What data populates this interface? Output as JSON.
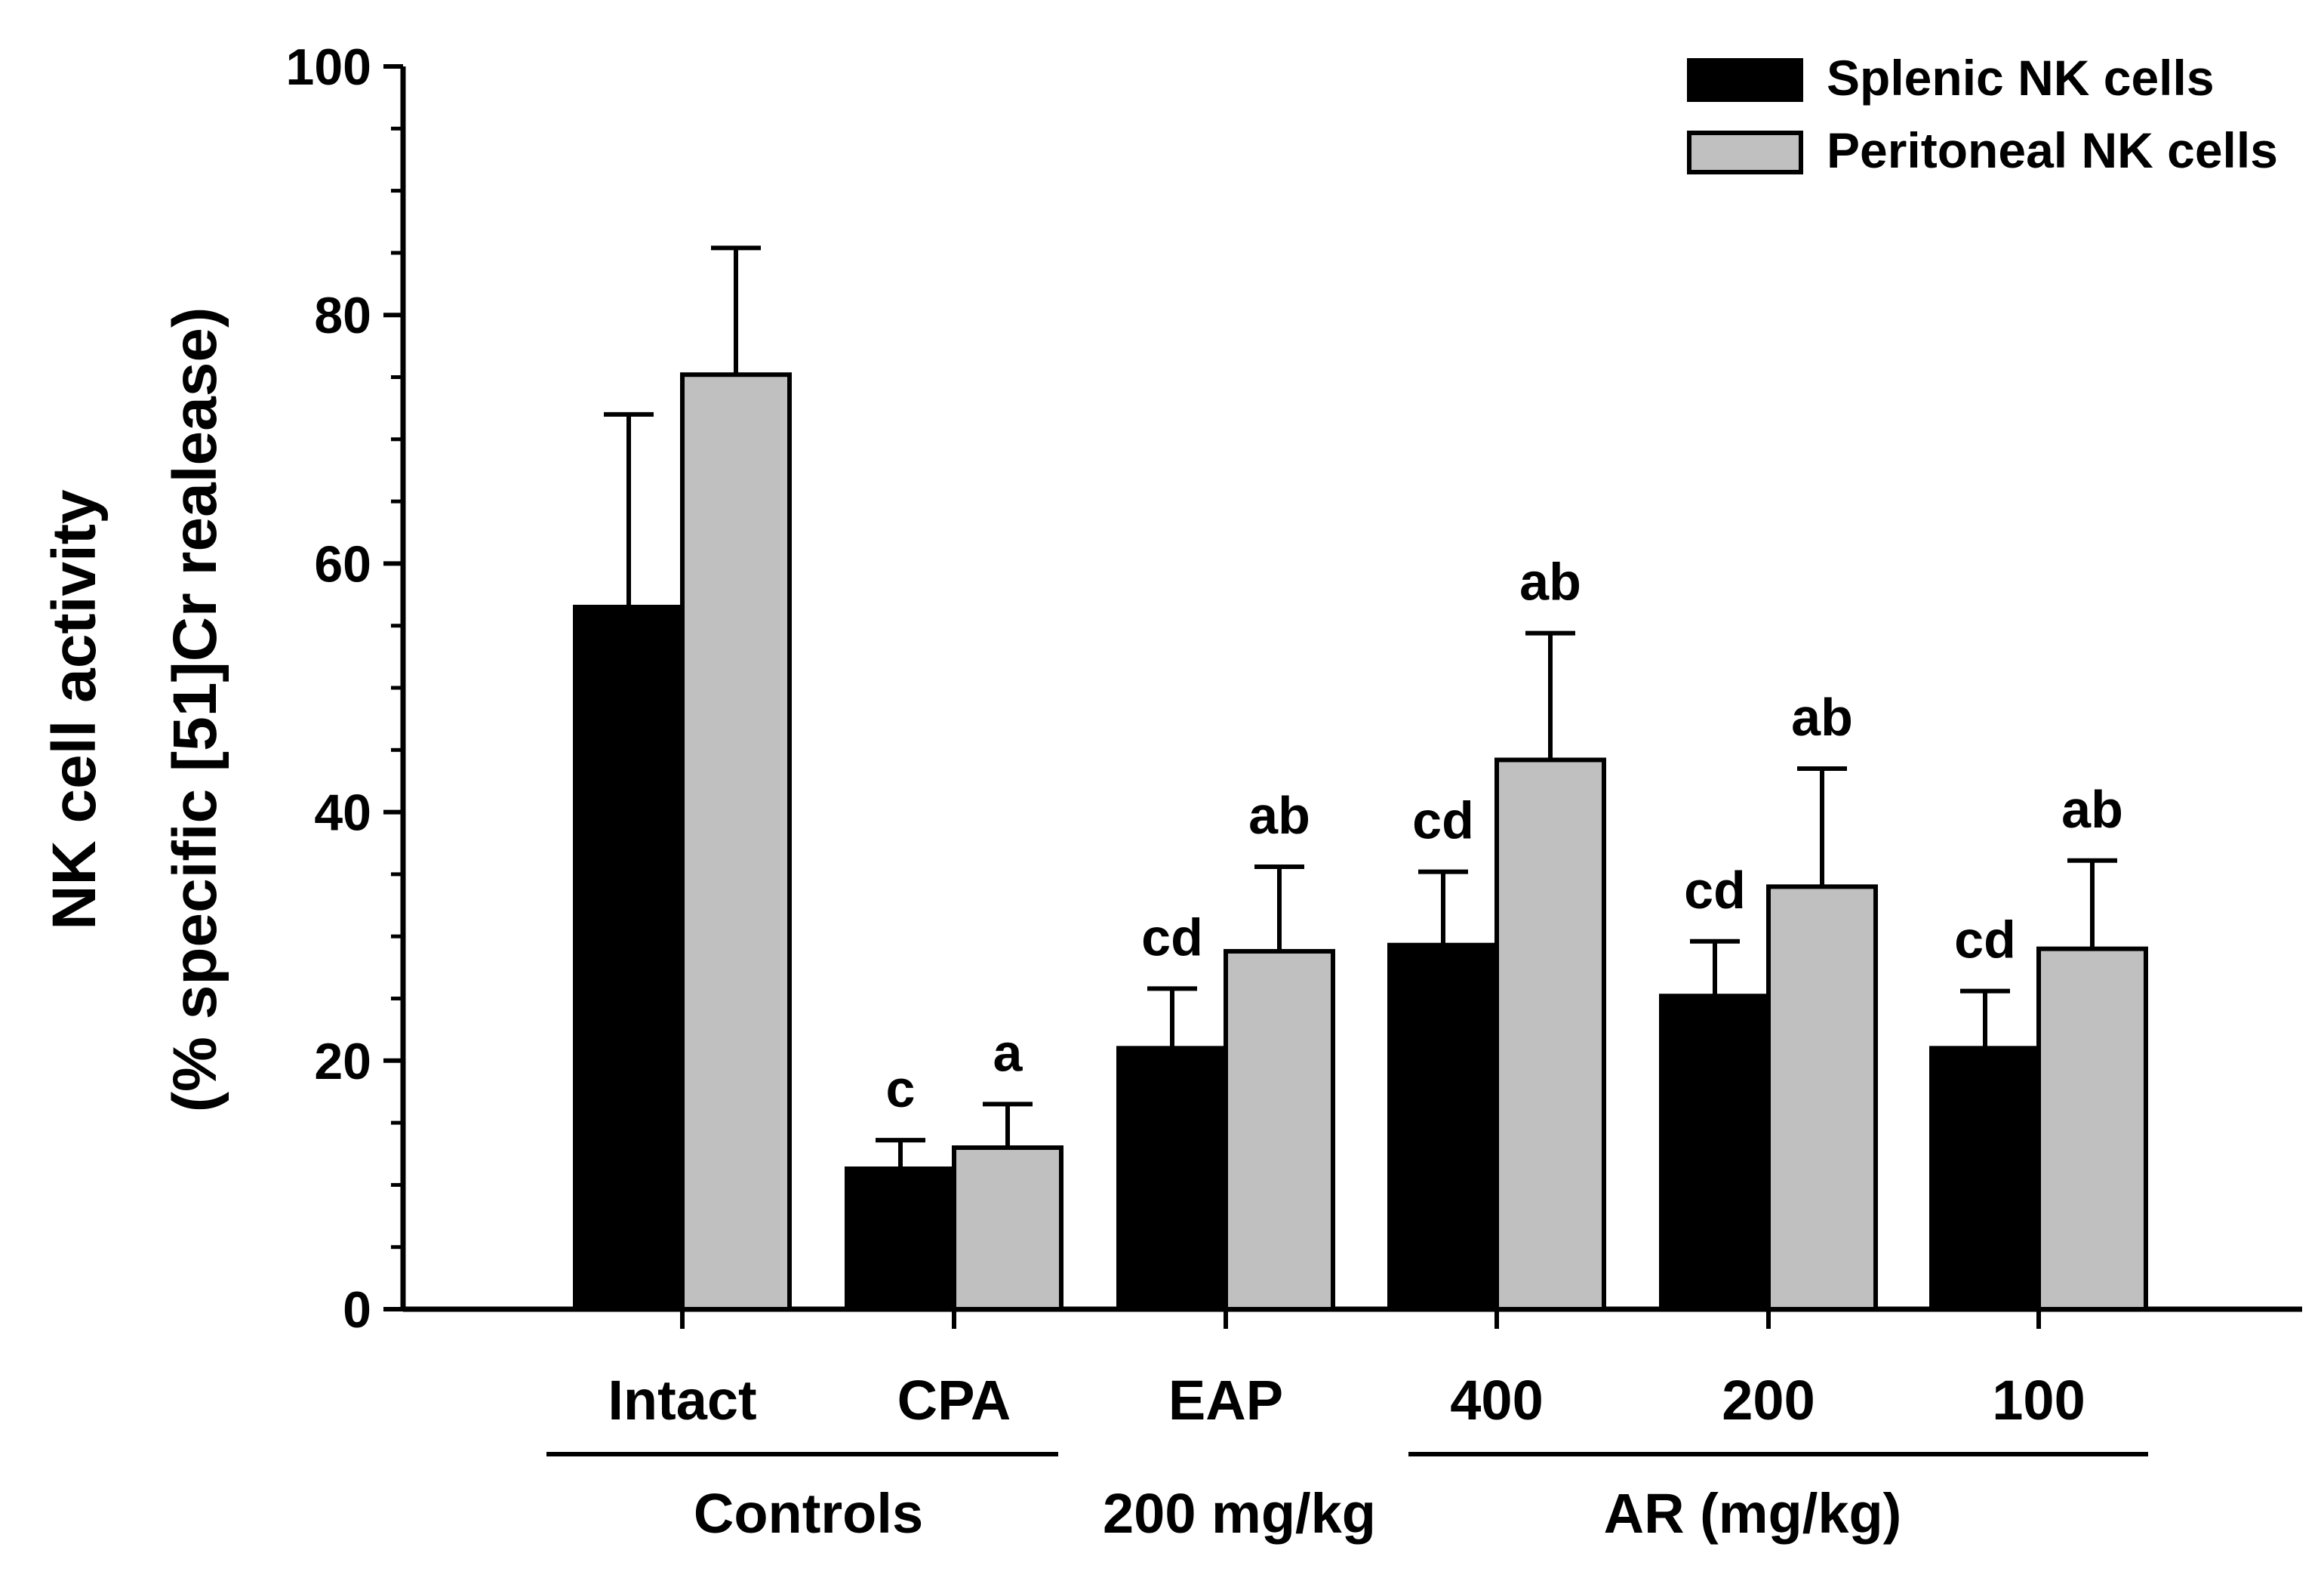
{
  "chart_data": {
    "type": "bar",
    "categories": [
      "Intact",
      "CPA",
      "EAP",
      "400",
      "200",
      "100"
    ],
    "group_labels": [
      {
        "label": "Controls",
        "categories": [
          "Intact",
          "CPA"
        ]
      },
      {
        "label": "200 mg/kg",
        "categories": [
          "EAP"
        ]
      },
      {
        "label": "AR (mg/kg)",
        "categories": [
          "400",
          "200",
          "100"
        ]
      }
    ],
    "series": [
      {
        "name": "Splenic NK cells",
        "color": "#000000",
        "values": [
          56.5,
          11.3,
          21.0,
          29.3,
          25.2,
          21.0
        ],
        "errors": [
          15.5,
          2.3,
          4.8,
          5.9,
          4.4,
          4.6
        ],
        "significance": [
          "",
          "c",
          "cd",
          "cd",
          "cd",
          "cd"
        ]
      },
      {
        "name": "Peritoneal NK cells",
        "color": "#c0c0c0",
        "values": [
          75.2,
          13.0,
          28.8,
          44.2,
          34.0,
          29.0
        ],
        "errors": [
          10.2,
          3.5,
          6.8,
          10.2,
          9.5,
          7.1
        ],
        "significance": [
          "",
          "a",
          "ab",
          "ab",
          "ab",
          "ab"
        ]
      }
    ],
    "ylabel": "NK cell activity",
    "ylabel_line2": "(% specific [51]Cr realease)",
    "ylim": [
      0,
      100
    ],
    "yticks": [
      "0",
      "20",
      "40",
      "60",
      "80",
      "100"
    ],
    "legend_position": "top-right",
    "grid": false
  }
}
